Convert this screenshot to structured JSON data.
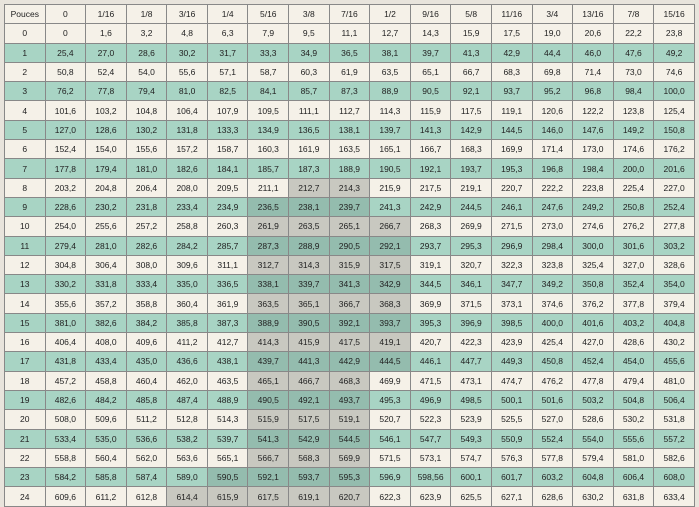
{
  "corner": "Pouces",
  "cols": [
    "0",
    "1/16",
    "1/8",
    "3/16",
    "1/4",
    "5/16",
    "3/8",
    "7/16",
    "1/2",
    "9/16",
    "5/8",
    "11/16",
    "3/4",
    "13/16",
    "7/8",
    "15/16"
  ],
  "rows": [
    {
      "h": "0",
      "g": false,
      "v": [
        "0",
        "1,6",
        "3,2",
        "4,8",
        "6,3",
        "7,9",
        "9,5",
        "11,1",
        "12,7",
        "14,3",
        "15,9",
        "17,5",
        "19,0",
        "20,6",
        "22,2",
        "23,8"
      ],
      "sh": []
    },
    {
      "h": "1",
      "g": true,
      "v": [
        "25,4",
        "27,0",
        "28,6",
        "30,2",
        "31,7",
        "33,3",
        "34,9",
        "36,5",
        "38,1",
        "39,7",
        "41,3",
        "42,9",
        "44,4",
        "46,0",
        "47,6",
        "49,2"
      ],
      "sh": []
    },
    {
      "h": "2",
      "g": false,
      "v": [
        "50,8",
        "52,4",
        "54,0",
        "55,6",
        "57,1",
        "58,7",
        "60,3",
        "61,9",
        "63,5",
        "65,1",
        "66,7",
        "68,3",
        "69,8",
        "71,4",
        "73,0",
        "74,6"
      ],
      "sh": []
    },
    {
      "h": "3",
      "g": true,
      "v": [
        "76,2",
        "77,8",
        "79,4",
        "81,0",
        "82,5",
        "84,1",
        "85,7",
        "87,3",
        "88,9",
        "90,5",
        "92,1",
        "93,7",
        "95,2",
        "96,8",
        "98,4",
        "100,0"
      ],
      "sh": []
    },
    {
      "h": "4",
      "g": false,
      "v": [
        "101,6",
        "103,2",
        "104,8",
        "106,4",
        "107,9",
        "109,5",
        "111,1",
        "112,7",
        "114,3",
        "115,9",
        "117,5",
        "119,1",
        "120,6",
        "122,2",
        "123,8",
        "125,4"
      ],
      "sh": []
    },
    {
      "h": "5",
      "g": true,
      "v": [
        "127,0",
        "128,6",
        "130,2",
        "131,8",
        "133,3",
        "134,9",
        "136,5",
        "138,1",
        "139,7",
        "141,3",
        "142,9",
        "144,5",
        "146,0",
        "147,6",
        "149,2",
        "150,8"
      ],
      "sh": []
    },
    {
      "h": "6",
      "g": false,
      "v": [
        "152,4",
        "154,0",
        "155,6",
        "157,2",
        "158,7",
        "160,3",
        "161,9",
        "163,5",
        "165,1",
        "166,7",
        "168,3",
        "169,9",
        "171,4",
        "173,0",
        "174,6",
        "176,2"
      ],
      "sh": []
    },
    {
      "h": "7",
      "g": true,
      "v": [
        "177,8",
        "179,4",
        "181,0",
        "182,6",
        "184,1",
        "185,7",
        "187,3",
        "188,9",
        "190,5",
        "192,1",
        "193,7",
        "195,3",
        "196,8",
        "198,4",
        "200,0",
        "201,6"
      ],
      "sh": []
    },
    {
      "h": "8",
      "g": false,
      "v": [
        "203,2",
        "204,8",
        "206,4",
        "208,0",
        "209,5",
        "211,1",
        "212,7",
        "214,3",
        "215,9",
        "217,5",
        "219,1",
        "220,7",
        "222,2",
        "223,8",
        "225,4",
        "227,0"
      ],
      "sh": [
        6,
        7
      ]
    },
    {
      "h": "9",
      "g": true,
      "v": [
        "228,6",
        "230,2",
        "231,8",
        "233,4",
        "234,9",
        "236,5",
        "238,1",
        "239,7",
        "241,3",
        "242,9",
        "244,5",
        "246,1",
        "247,6",
        "249,2",
        "250,8",
        "252,4"
      ],
      "sh": [
        5,
        6,
        7
      ]
    },
    {
      "h": "10",
      "g": false,
      "v": [
        "254,0",
        "255,6",
        "257,2",
        "258,8",
        "260,3",
        "261,9",
        "263,5",
        "265,1",
        "266,7",
        "268,3",
        "269,9",
        "271,5",
        "273,0",
        "274,6",
        "276,2",
        "277,8"
      ],
      "sh": [
        5,
        6,
        7,
        8
      ]
    },
    {
      "h": "11",
      "g": true,
      "v": [
        "279,4",
        "281,0",
        "282,6",
        "284,2",
        "285,7",
        "287,3",
        "288,9",
        "290,5",
        "292,1",
        "293,7",
        "295,3",
        "296,9",
        "298,4",
        "300,0",
        "301,6",
        "303,2"
      ],
      "sh": [
        5,
        6,
        7,
        8
      ]
    },
    {
      "h": "12",
      "g": false,
      "v": [
        "304,8",
        "306,4",
        "308,0",
        "309,6",
        "311,1",
        "312,7",
        "314,3",
        "315,9",
        "317,5",
        "319,1",
        "320,7",
        "322,3",
        "323,8",
        "325,4",
        "327,0",
        "328,6"
      ],
      "sh": [
        5,
        6,
        7,
        8
      ]
    },
    {
      "h": "13",
      "g": true,
      "v": [
        "330,2",
        "331,8",
        "333,4",
        "335,0",
        "336,5",
        "338,1",
        "339,7",
        "341,3",
        "342,9",
        "344,5",
        "346,1",
        "347,7",
        "349,2",
        "350,8",
        "352,4",
        "354,0"
      ],
      "sh": [
        5,
        6,
        7,
        8
      ]
    },
    {
      "h": "14",
      "g": false,
      "v": [
        "355,6",
        "357,2",
        "358,8",
        "360,4",
        "361,9",
        "363,5",
        "365,1",
        "366,7",
        "368,3",
        "369,9",
        "371,5",
        "373,1",
        "374,6",
        "376,2",
        "377,8",
        "379,4"
      ],
      "sh": [
        5,
        6,
        7,
        8
      ]
    },
    {
      "h": "15",
      "g": true,
      "v": [
        "381,0",
        "382,6",
        "384,2",
        "385,8",
        "387,3",
        "388,9",
        "390,5",
        "392,1",
        "393,7",
        "395,3",
        "396,9",
        "398,5",
        "400,0",
        "401,6",
        "403,2",
        "404,8"
      ],
      "sh": [
        5,
        6,
        7,
        8
      ]
    },
    {
      "h": "16",
      "g": false,
      "v": [
        "406,4",
        "408,0",
        "409,6",
        "411,2",
        "412,7",
        "414,3",
        "415,9",
        "417,5",
        "419,1",
        "420,7",
        "422,3",
        "423,9",
        "425,4",
        "427,0",
        "428,6",
        "430,2"
      ],
      "sh": [
        5,
        6,
        7,
        8
      ]
    },
    {
      "h": "17",
      "g": true,
      "v": [
        "431,8",
        "433,4",
        "435,0",
        "436,6",
        "438,1",
        "439,7",
        "441,3",
        "442,9",
        "444,5",
        "446,1",
        "447,7",
        "449,3",
        "450,8",
        "452,4",
        "454,0",
        "455,6"
      ],
      "sh": [
        5,
        6,
        7,
        8
      ]
    },
    {
      "h": "18",
      "g": false,
      "v": [
        "457,2",
        "458,8",
        "460,4",
        "462,0",
        "463,5",
        "465,1",
        "466,7",
        "468,3",
        "469,9",
        "471,5",
        "473,1",
        "474,7",
        "476,2",
        "477,8",
        "479,4",
        "481,0"
      ],
      "sh": [
        5,
        6,
        7
      ]
    },
    {
      "h": "19",
      "g": true,
      "v": [
        "482,6",
        "484,2",
        "485,8",
        "487,4",
        "488,9",
        "490,5",
        "492,1",
        "493,7",
        "495,3",
        "496,9",
        "498,5",
        "500,1",
        "501,6",
        "503,2",
        "504,8",
        "506,4"
      ],
      "sh": [
        5,
        6,
        7
      ]
    },
    {
      "h": "20",
      "g": false,
      "v": [
        "508,0",
        "509,6",
        "511,2",
        "512,8",
        "514,3",
        "515,9",
        "517,5",
        "519,1",
        "520,7",
        "522,3",
        "523,9",
        "525,5",
        "527,0",
        "528,6",
        "530,2",
        "531,8"
      ],
      "sh": [
        5,
        6,
        7
      ]
    },
    {
      "h": "21",
      "g": true,
      "v": [
        "533,4",
        "535,0",
        "536,6",
        "538,2",
        "539,7",
        "541,3",
        "542,9",
        "544,5",
        "546,1",
        "547,7",
        "549,3",
        "550,9",
        "552,4",
        "554,0",
        "555,6",
        "557,2"
      ],
      "sh": [
        5,
        6,
        7
      ]
    },
    {
      "h": "22",
      "g": false,
      "v": [
        "558,8",
        "560,4",
        "562,0",
        "563,6",
        "565,1",
        "566,7",
        "568,3",
        "569,9",
        "571,5",
        "573,1",
        "574,7",
        "576,3",
        "577,8",
        "579,4",
        "581,0",
        "582,6"
      ],
      "sh": [
        5,
        6,
        7
      ]
    },
    {
      "h": "23",
      "g": true,
      "v": [
        "584,2",
        "585,8",
        "587,4",
        "589,0",
        "590,5",
        "592,1",
        "593,7",
        "595,3",
        "596,9",
        "598,56",
        "600,1",
        "601,7",
        "603,2",
        "604,8",
        "606,4",
        "608,0"
      ],
      "sh": [
        4,
        5,
        6,
        7
      ]
    },
    {
      "h": "24",
      "g": false,
      "v": [
        "609,6",
        "611,2",
        "612,8",
        "614,4",
        "615,9",
        "617,5",
        "619,1",
        "620,7",
        "622,3",
        "623,9",
        "625,5",
        "627,1",
        "628,6",
        "630,2",
        "631,8",
        "633,4"
      ],
      "sh": [
        3,
        4,
        5,
        6,
        7
      ]
    }
  ],
  "style": {
    "alt_row_color": "#a8d4c4",
    "base_color": "#f5f1e8",
    "shade_light": "#c8c8c0",
    "shade_green": "#94bcae",
    "border": "#888888",
    "font_size": 8.5
  }
}
